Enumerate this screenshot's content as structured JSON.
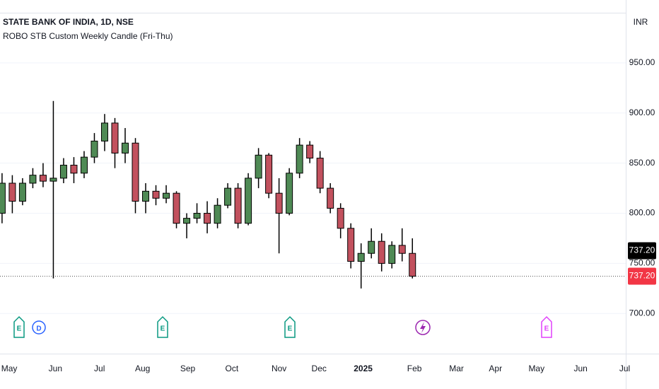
{
  "chart_data": {
    "type": "candlestick",
    "title": "STATE BANK OF INDIA, 1D, NSE",
    "subtitle": "ROBO STB Custom Weekly Candle (Fri-Thu)",
    "currency": "INR",
    "x": [
      0,
      1,
      2,
      3,
      4,
      5,
      6,
      7,
      8,
      9,
      10,
      11,
      12,
      13,
      14,
      15,
      16,
      17,
      18,
      19,
      20,
      21,
      22,
      23,
      24,
      25,
      26,
      27,
      28,
      29,
      30,
      31,
      32,
      33,
      34,
      35,
      36,
      37,
      38,
      39,
      40
    ],
    "open": [
      800,
      830,
      812,
      830,
      838,
      832,
      835,
      848,
      840,
      856,
      872,
      890,
      860,
      870,
      812,
      822,
      815,
      820,
      790,
      795,
      800,
      790,
      808,
      825,
      790,
      835,
      858,
      820,
      800,
      840,
      868,
      855,
      825,
      805,
      785,
      752,
      760,
      772,
      750,
      768,
      760
    ],
    "high": [
      840,
      838,
      835,
      845,
      850,
      912,
      855,
      856,
      862,
      880,
      899,
      895,
      885,
      875,
      830,
      828,
      828,
      822,
      800,
      810,
      812,
      815,
      830,
      830,
      840,
      865,
      860,
      835,
      845,
      875,
      872,
      862,
      830,
      810,
      790,
      770,
      785,
      780,
      772,
      785,
      775
    ],
    "low": [
      790,
      800,
      808,
      825,
      826,
      735,
      830,
      830,
      835,
      850,
      862,
      845,
      850,
      800,
      800,
      808,
      810,
      785,
      775,
      790,
      780,
      785,
      805,
      785,
      788,
      825,
      815,
      760,
      798,
      835,
      850,
      820,
      800,
      775,
      745,
      725,
      755,
      742,
      745,
      752,
      735
    ],
    "close": [
      830,
      812,
      830,
      838,
      832,
      835,
      848,
      840,
      856,
      872,
      890,
      860,
      870,
      812,
      822,
      815,
      820,
      790,
      795,
      800,
      790,
      808,
      825,
      790,
      835,
      858,
      820,
      800,
      840,
      868,
      855,
      825,
      805,
      785,
      752,
      760,
      772,
      750,
      768,
      760,
      737.2
    ],
    "up_color": "#4f8a55",
    "down_color": "#c2515e",
    "xlim": [
      -0.2,
      60.8
    ],
    "xticks": [
      {
        "value": 0.7,
        "label": "May"
      },
      {
        "value": 5.2,
        "label": "Jun"
      },
      {
        "value": 9.5,
        "label": "Jul"
      },
      {
        "value": 13.7,
        "label": "Aug"
      },
      {
        "value": 18.1,
        "label": "Sep"
      },
      {
        "value": 22.4,
        "label": "Oct"
      },
      {
        "value": 27,
        "label": "Nov"
      },
      {
        "value": 30.9,
        "label": "Dec"
      },
      {
        "value": 35.2,
        "label": "2025"
      },
      {
        "value": 40.2,
        "label": "Feb"
      },
      {
        "value": 44.3,
        "label": "Mar"
      },
      {
        "value": 48.1,
        "label": "Apr"
      },
      {
        "value": 52.1,
        "label": "May"
      },
      {
        "value": 56.4,
        "label": "Jun"
      },
      {
        "value": 60.7,
        "label": "Jul"
      }
    ],
    "ylim": [
      660,
      1000
    ],
    "yticks": [
      {
        "value": 700,
        "label": "700.00"
      },
      {
        "value": 750,
        "label": "750.00"
      },
      {
        "value": 800,
        "label": "800.00"
      },
      {
        "value": 850,
        "label": "850.00"
      },
      {
        "value": 900,
        "label": "900.00"
      },
      {
        "value": 950,
        "label": "950.00"
      }
    ],
    "grid": true,
    "price_labels": [
      {
        "value": 737.2,
        "label": "737.20",
        "color": "#000000"
      },
      {
        "value": 737.2,
        "label": "737.20",
        "color": "#f23645"
      }
    ],
    "events": [
      "E",
      "D",
      "E",
      "E",
      "E"
    ]
  }
}
